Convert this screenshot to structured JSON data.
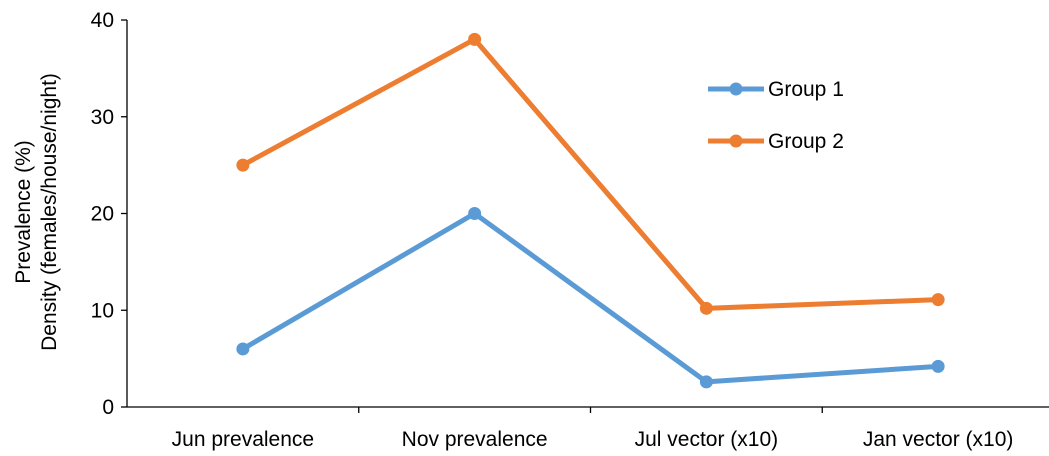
{
  "chart_data": {
    "type": "line",
    "title": "",
    "xlabel": "",
    "ylabel_lines": [
      "Prevalence (%)",
      "Density (females/house/night)"
    ],
    "categories": [
      "Jun prevalence",
      "Nov prevalence",
      "Jul vector (x10)",
      "Jan vector (x10)"
    ],
    "ylim": [
      0,
      40
    ],
    "yticks": [
      0,
      10,
      20,
      30,
      40
    ],
    "grid": false,
    "legend_position": "top-right",
    "series": [
      {
        "name": "Group 1",
        "color": "#5B9BD5",
        "values": [
          6,
          20,
          2.6,
          4.2
        ]
      },
      {
        "name": "Group 2",
        "color": "#ED7D31",
        "values": [
          25,
          38,
          10.2,
          11.1
        ]
      }
    ]
  }
}
